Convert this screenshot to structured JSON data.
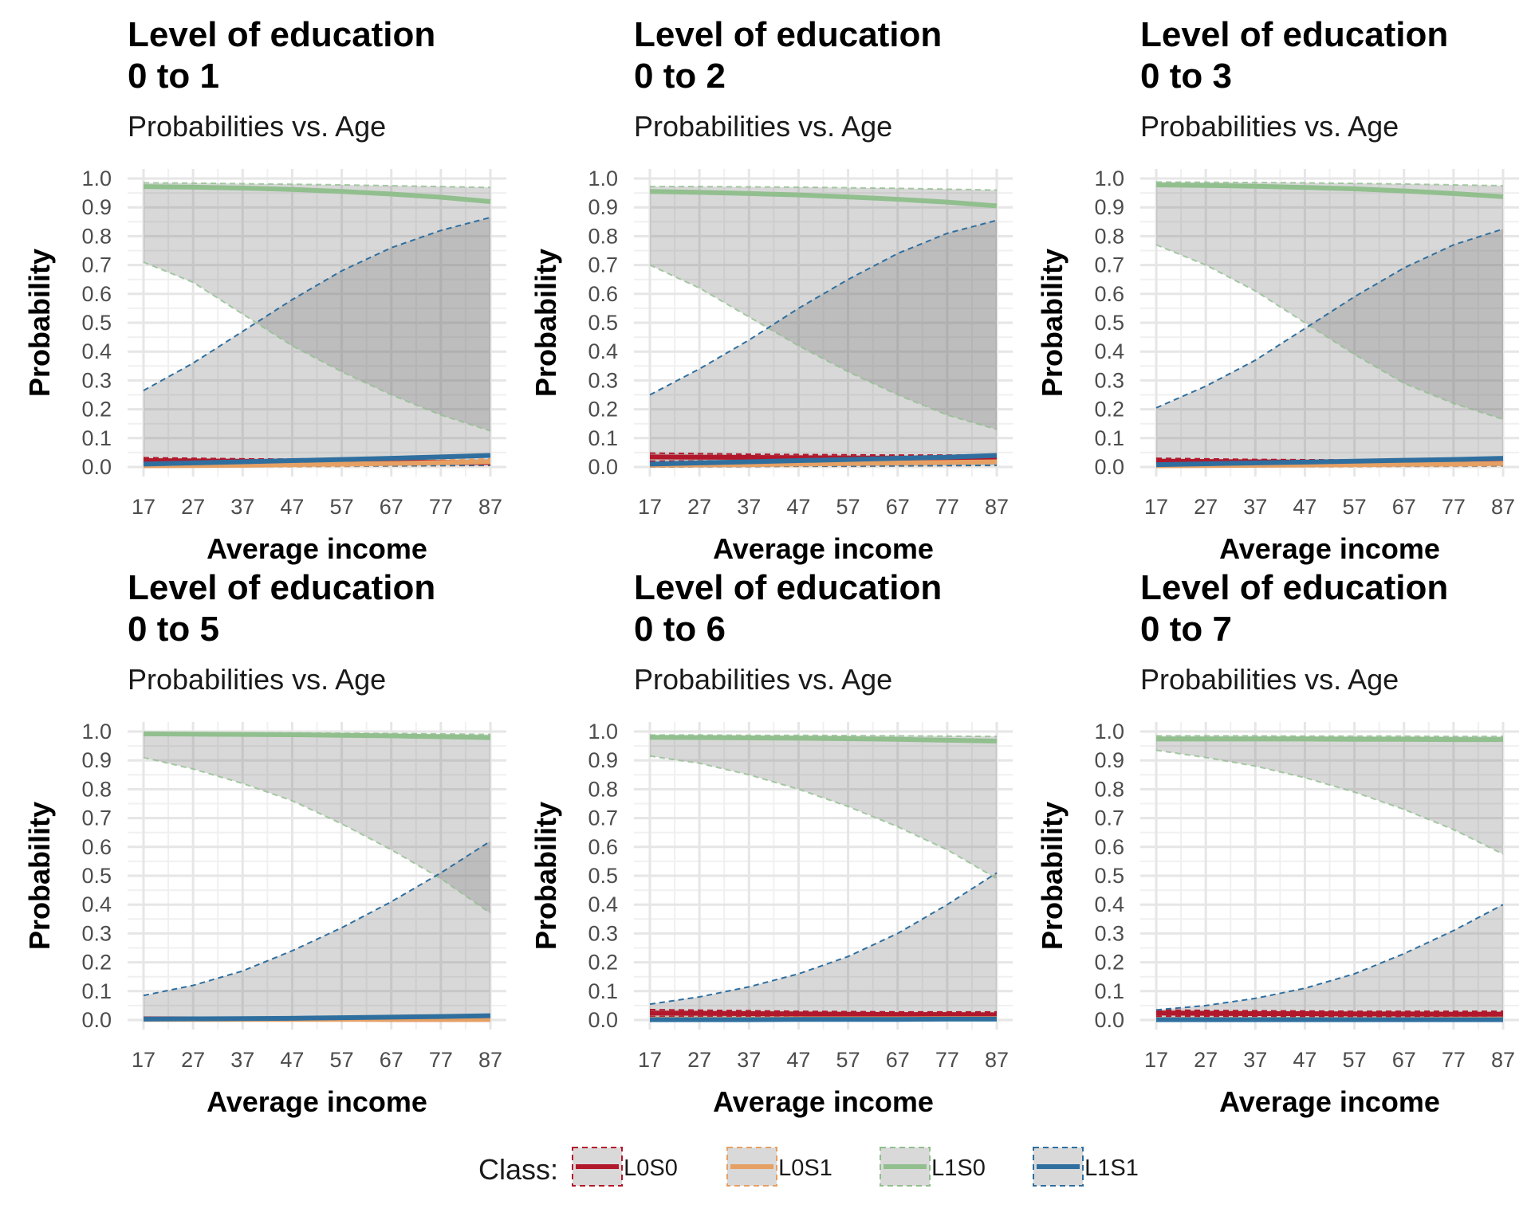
{
  "figure": {
    "legend": {
      "title": "Class:",
      "items": [
        {
          "label": "L0S0",
          "color": "#b2182b",
          "band_fill": "#d9d9d9"
        },
        {
          "label": "L0S1",
          "color": "#e6a063",
          "band_fill": "#d9d9d9"
        },
        {
          "label": "L1S0",
          "color": "#91bf8e",
          "band_fill": "#d9d9d9"
        },
        {
          "label": "L1S1",
          "color": "#2f6f9f",
          "band_fill": "#d9d9d9"
        }
      ]
    }
  },
  "chart_data": [
    {
      "type": "line",
      "title": "Level of education\n0 to 1",
      "title_lines": [
        "Level of education",
        "0 to 1"
      ],
      "subtitle": "Probabilities vs. Age",
      "xlabel": "Average income",
      "ylabel": "Probability",
      "xlim": [
        17,
        87
      ],
      "ylim": [
        0,
        1
      ],
      "xticks": [
        17,
        27,
        37,
        47,
        57,
        67,
        77,
        87
      ],
      "yticks": [
        0.0,
        0.1,
        0.2,
        0.3,
        0.4,
        0.5,
        0.6,
        0.7,
        0.8,
        0.9,
        1.0
      ],
      "x": [
        17,
        27,
        37,
        47,
        57,
        67,
        77,
        87
      ],
      "series": [
        {
          "name": "L0S0",
          "values": [
            0.022,
            0.021,
            0.02,
            0.019,
            0.018,
            0.017,
            0.016,
            0.015
          ],
          "lower": [
            0.01,
            0.011,
            0.011,
            0.011,
            0.01,
            0.009,
            0.008,
            0.007
          ],
          "upper": [
            0.032,
            0.03,
            0.028,
            0.027,
            0.026,
            0.025,
            0.024,
            0.023
          ]
        },
        {
          "name": "L0S1",
          "values": [
            0.004,
            0.005,
            0.006,
            0.008,
            0.01,
            0.012,
            0.015,
            0.018
          ],
          "lower": [
            0.0,
            0.0,
            0.001,
            0.001,
            0.002,
            0.003,
            0.004,
            0.005
          ],
          "upper": [
            0.01,
            0.011,
            0.013,
            0.015,
            0.018,
            0.021,
            0.024,
            0.028
          ]
        },
        {
          "name": "L1S0",
          "values": [
            0.972,
            0.97,
            0.967,
            0.962,
            0.955,
            0.946,
            0.935,
            0.92
          ],
          "lower": [
            0.71,
            0.64,
            0.53,
            0.42,
            0.33,
            0.25,
            0.18,
            0.125
          ],
          "upper": [
            0.985,
            0.984,
            0.982,
            0.98,
            0.978,
            0.975,
            0.972,
            0.969
          ]
        },
        {
          "name": "L1S1",
          "values": [
            0.01,
            0.014,
            0.018,
            0.022,
            0.026,
            0.03,
            0.035,
            0.04
          ],
          "lower": [
            0.0,
            0.001,
            0.002,
            0.003,
            0.004,
            0.004,
            0.005,
            0.006
          ],
          "upper": [
            0.265,
            0.36,
            0.47,
            0.58,
            0.68,
            0.76,
            0.82,
            0.865
          ]
        }
      ]
    },
    {
      "type": "line",
      "title": "Level of education\n0 to 2",
      "title_lines": [
        "Level of education",
        "0 to 2"
      ],
      "subtitle": "Probabilities vs. Age",
      "xlabel": "Average income",
      "ylabel": "Probability",
      "xlim": [
        17,
        87
      ],
      "ylim": [
        0,
        1
      ],
      "xticks": [
        17,
        27,
        37,
        47,
        57,
        67,
        77,
        87
      ],
      "yticks": [
        0.0,
        0.1,
        0.2,
        0.3,
        0.4,
        0.5,
        0.6,
        0.7,
        0.8,
        0.9,
        1.0
      ],
      "x": [
        17,
        27,
        37,
        47,
        57,
        67,
        77,
        87
      ],
      "series": [
        {
          "name": "L0S0",
          "values": [
            0.035,
            0.034,
            0.033,
            0.032,
            0.031,
            0.03,
            0.029,
            0.028
          ],
          "lower": [
            0.02,
            0.021,
            0.021,
            0.02,
            0.019,
            0.018,
            0.016,
            0.014
          ],
          "upper": [
            0.048,
            0.046,
            0.044,
            0.043,
            0.042,
            0.041,
            0.041,
            0.042
          ]
        },
        {
          "name": "L0S1",
          "values": [
            0.006,
            0.007,
            0.008,
            0.01,
            0.012,
            0.014,
            0.016,
            0.018
          ],
          "lower": [
            0.0,
            0.001,
            0.001,
            0.002,
            0.002,
            0.003,
            0.004,
            0.005
          ],
          "upper": [
            0.014,
            0.015,
            0.016,
            0.018,
            0.02,
            0.022,
            0.025,
            0.028
          ]
        },
        {
          "name": "L1S0",
          "values": [
            0.955,
            0.952,
            0.948,
            0.943,
            0.936,
            0.928,
            0.918,
            0.905
          ],
          "lower": [
            0.7,
            0.62,
            0.52,
            0.42,
            0.33,
            0.25,
            0.18,
            0.13
          ],
          "upper": [
            0.972,
            0.972,
            0.971,
            0.97,
            0.968,
            0.966,
            0.963,
            0.96
          ]
        },
        {
          "name": "L1S1",
          "values": [
            0.01,
            0.014,
            0.018,
            0.022,
            0.026,
            0.03,
            0.034,
            0.04
          ],
          "lower": [
            0.0,
            0.001,
            0.002,
            0.003,
            0.003,
            0.004,
            0.005,
            0.006
          ],
          "upper": [
            0.25,
            0.34,
            0.44,
            0.55,
            0.65,
            0.74,
            0.81,
            0.855
          ]
        }
      ]
    },
    {
      "type": "line",
      "title": "Level of education\n0 to 3",
      "title_lines": [
        "Level of education",
        "0 to 3"
      ],
      "subtitle": "Probabilities vs. Age",
      "xlabel": "Average income",
      "ylabel": "Probability",
      "xlim": [
        17,
        87
      ],
      "ylim": [
        0,
        1
      ],
      "xticks": [
        17,
        27,
        37,
        47,
        57,
        67,
        77,
        87
      ],
      "yticks": [
        0.0,
        0.1,
        0.2,
        0.3,
        0.4,
        0.5,
        0.6,
        0.7,
        0.8,
        0.9,
        1.0
      ],
      "x": [
        17,
        27,
        37,
        47,
        57,
        67,
        77,
        87
      ],
      "series": [
        {
          "name": "L0S0",
          "values": [
            0.02,
            0.019,
            0.018,
            0.017,
            0.016,
            0.015,
            0.014,
            0.013
          ],
          "lower": [
            0.008,
            0.009,
            0.009,
            0.009,
            0.008,
            0.007,
            0.006,
            0.005
          ],
          "upper": [
            0.03,
            0.028,
            0.026,
            0.025,
            0.024,
            0.023,
            0.022,
            0.021
          ]
        },
        {
          "name": "L0S1",
          "values": [
            0.004,
            0.005,
            0.006,
            0.007,
            0.008,
            0.009,
            0.01,
            0.012
          ],
          "lower": [
            0.0,
            0.0,
            0.001,
            0.001,
            0.001,
            0.002,
            0.002,
            0.003
          ],
          "upper": [
            0.01,
            0.011,
            0.012,
            0.013,
            0.015,
            0.017,
            0.019,
            0.021
          ]
        },
        {
          "name": "L1S0",
          "values": [
            0.978,
            0.976,
            0.973,
            0.969,
            0.964,
            0.957,
            0.948,
            0.937
          ],
          "lower": [
            0.77,
            0.7,
            0.61,
            0.5,
            0.39,
            0.29,
            0.22,
            0.165
          ],
          "upper": [
            0.988,
            0.987,
            0.986,
            0.985,
            0.983,
            0.981,
            0.978,
            0.975
          ]
        },
        {
          "name": "L1S1",
          "values": [
            0.008,
            0.011,
            0.014,
            0.017,
            0.02,
            0.023,
            0.026,
            0.03
          ],
          "lower": [
            0.0,
            0.001,
            0.001,
            0.002,
            0.003,
            0.003,
            0.004,
            0.005
          ],
          "upper": [
            0.205,
            0.28,
            0.37,
            0.48,
            0.59,
            0.69,
            0.77,
            0.825
          ]
        }
      ]
    },
    {
      "type": "line",
      "title": "Level of education\n0 to 5",
      "title_lines": [
        "Level of education",
        "0 to 5"
      ],
      "subtitle": "Probabilities vs. Age",
      "xlabel": "Average income",
      "ylabel": "Probability",
      "xlim": [
        17,
        87
      ],
      "ylim": [
        0,
        1
      ],
      "xticks": [
        17,
        27,
        37,
        47,
        57,
        67,
        77,
        87
      ],
      "yticks": [
        0.0,
        0.1,
        0.2,
        0.3,
        0.4,
        0.5,
        0.6,
        0.7,
        0.8,
        0.9,
        1.0
      ],
      "x": [
        17,
        27,
        37,
        47,
        57,
        67,
        77,
        87
      ],
      "series": [
        {
          "name": "L0S0",
          "values": [
            0.004,
            0.004,
            0.003,
            0.003,
            0.003,
            0.002,
            0.002,
            0.002
          ],
          "lower": [
            0.0,
            0.0,
            0.0,
            0.0,
            0.0,
            0.0,
            0.0,
            0.0
          ],
          "upper": [
            0.008,
            0.008,
            0.007,
            0.007,
            0.006,
            0.006,
            0.006,
            0.006
          ]
        },
        {
          "name": "L0S1",
          "values": [
            0.002,
            0.002,
            0.002,
            0.002,
            0.002,
            0.002,
            0.002,
            0.002
          ],
          "lower": [
            0.0,
            0.0,
            0.0,
            0.0,
            0.0,
            0.0,
            0.0,
            0.0
          ],
          "upper": [
            0.005,
            0.005,
            0.005,
            0.005,
            0.005,
            0.005,
            0.005,
            0.005
          ]
        },
        {
          "name": "L1S0",
          "values": [
            0.992,
            0.991,
            0.99,
            0.989,
            0.987,
            0.985,
            0.982,
            0.979
          ],
          "lower": [
            0.91,
            0.87,
            0.82,
            0.76,
            0.68,
            0.59,
            0.49,
            0.37
          ],
          "upper": [
            0.996,
            0.996,
            0.995,
            0.995,
            0.994,
            0.993,
            0.992,
            0.99
          ]
        },
        {
          "name": "L1S1",
          "values": [
            0.003,
            0.004,
            0.005,
            0.006,
            0.008,
            0.01,
            0.012,
            0.015
          ],
          "lower": [
            0.0,
            0.0,
            0.0,
            0.001,
            0.001,
            0.001,
            0.002,
            0.002
          ],
          "upper": [
            0.085,
            0.12,
            0.17,
            0.24,
            0.32,
            0.41,
            0.51,
            0.62
          ]
        }
      ]
    },
    {
      "type": "line",
      "title": "Level of education\n0 to 6",
      "title_lines": [
        "Level of education",
        "0 to 6"
      ],
      "subtitle": "Probabilities vs. Age",
      "xlabel": "Average income",
      "ylabel": "Probability",
      "xlim": [
        17,
        87
      ],
      "ylim": [
        0,
        1
      ],
      "xticks": [
        17,
        27,
        37,
        47,
        57,
        67,
        77,
        87
      ],
      "yticks": [
        0.0,
        0.1,
        0.2,
        0.3,
        0.4,
        0.5,
        0.6,
        0.7,
        0.8,
        0.9,
        1.0
      ],
      "x": [
        17,
        27,
        37,
        47,
        57,
        67,
        77,
        87
      ],
      "series": [
        {
          "name": "L0S0",
          "values": [
            0.024,
            0.023,
            0.022,
            0.021,
            0.02,
            0.019,
            0.019,
            0.018
          ],
          "lower": [
            0.012,
            0.012,
            0.012,
            0.011,
            0.01,
            0.009,
            0.008,
            0.007
          ],
          "upper": [
            0.036,
            0.034,
            0.032,
            0.03,
            0.029,
            0.028,
            0.028,
            0.028
          ]
        },
        {
          "name": "L0S1",
          "values": [
            0.003,
            0.003,
            0.003,
            0.004,
            0.004,
            0.004,
            0.005,
            0.005
          ],
          "lower": [
            0.0,
            0.0,
            0.0,
            0.0,
            0.0,
            0.001,
            0.001,
            0.001
          ],
          "upper": [
            0.008,
            0.008,
            0.008,
            0.009,
            0.009,
            0.01,
            0.011,
            0.012
          ]
        },
        {
          "name": "L1S0",
          "values": [
            0.98,
            0.979,
            0.978,
            0.977,
            0.975,
            0.973,
            0.97,
            0.967
          ],
          "lower": [
            0.915,
            0.89,
            0.85,
            0.8,
            0.74,
            0.67,
            0.59,
            0.49
          ],
          "upper": [
            0.988,
            0.988,
            0.987,
            0.987,
            0.986,
            0.985,
            0.984,
            0.983
          ]
        },
        {
          "name": "L1S1",
          "values": [
            0.001,
            0.001,
            0.001,
            0.002,
            0.002,
            0.002,
            0.003,
            0.003
          ],
          "lower": [
            0.0,
            0.0,
            0.0,
            0.0,
            0.0,
            0.0,
            0.0,
            0.0
          ],
          "upper": [
            0.055,
            0.08,
            0.115,
            0.16,
            0.22,
            0.3,
            0.4,
            0.51
          ]
        }
      ]
    },
    {
      "type": "line",
      "title": "Level of education\n0 to 7",
      "title_lines": [
        "Level of education",
        "0 to 7"
      ],
      "subtitle": "Probabilities vs. Age",
      "xlabel": "Average income",
      "ylabel": "Probability",
      "xlim": [
        17,
        87
      ],
      "ylim": [
        0,
        1
      ],
      "xticks": [
        17,
        27,
        37,
        47,
        57,
        67,
        77,
        87
      ],
      "yticks": [
        0.0,
        0.1,
        0.2,
        0.3,
        0.4,
        0.5,
        0.6,
        0.7,
        0.8,
        0.9,
        1.0
      ],
      "x": [
        17,
        27,
        37,
        47,
        57,
        67,
        77,
        87
      ],
      "series": [
        {
          "name": "L0S0",
          "values": [
            0.024,
            0.023,
            0.022,
            0.022,
            0.021,
            0.021,
            0.02,
            0.02
          ],
          "lower": [
            0.013,
            0.013,
            0.013,
            0.012,
            0.012,
            0.011,
            0.01,
            0.009
          ],
          "upper": [
            0.035,
            0.033,
            0.032,
            0.031,
            0.03,
            0.03,
            0.03,
            0.03
          ]
        },
        {
          "name": "L0S1",
          "values": [
            0.002,
            0.002,
            0.002,
            0.002,
            0.002,
            0.002,
            0.003,
            0.003
          ],
          "lower": [
            0.0,
            0.0,
            0.0,
            0.0,
            0.0,
            0.0,
            0.0,
            0.0
          ],
          "upper": [
            0.006,
            0.006,
            0.006,
            0.006,
            0.007,
            0.007,
            0.008,
            0.008
          ]
        },
        {
          "name": "L1S0",
          "values": [
            0.974,
            0.974,
            0.974,
            0.974,
            0.973,
            0.973,
            0.972,
            0.972
          ],
          "lower": [
            0.935,
            0.91,
            0.88,
            0.84,
            0.79,
            0.73,
            0.66,
            0.575
          ],
          "upper": [
            0.985,
            0.985,
            0.985,
            0.984,
            0.984,
            0.984,
            0.983,
            0.983
          ]
        },
        {
          "name": "L1S1",
          "values": [
            0.001,
            0.001,
            0.001,
            0.001,
            0.001,
            0.001,
            0.001,
            0.001
          ],
          "lower": [
            0.0,
            0.0,
            0.0,
            0.0,
            0.0,
            0.0,
            0.0,
            0.0
          ],
          "upper": [
            0.035,
            0.05,
            0.075,
            0.11,
            0.16,
            0.23,
            0.31,
            0.4
          ]
        }
      ]
    }
  ]
}
